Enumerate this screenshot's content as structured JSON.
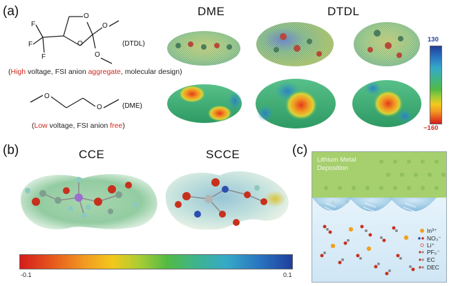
{
  "panels": {
    "a": {
      "label": "(a)",
      "dtdl": {
        "atoms": {
          "F1": "F",
          "F2": "F",
          "F3": "F",
          "O1": "O",
          "O2": "O",
          "O3": "O",
          "O4": "O"
        },
        "tag": "(DTDL)",
        "caption": {
          "open": "(",
          "high": "High",
          "mid": " voltage, FSI anion ",
          "agg": "aggregate",
          "end": ", molecular design)"
        }
      },
      "dme": {
        "atoms": {
          "O1": "O",
          "O2": "O"
        },
        "tag": "(DME)",
        "caption": {
          "open": "(",
          "low": "Low",
          "mid": " voltage, FSI anion ",
          "free": "free",
          "end": ")"
        }
      },
      "titles": {
        "dme": "DME",
        "dtdl": "DTDL"
      },
      "scale": {
        "max": "130",
        "min": "−160"
      }
    },
    "b": {
      "label": "(b)",
      "titles": {
        "cce": "CCE",
        "scce": "SCCE"
      },
      "scale": {
        "min": "-0.1",
        "max": "0.1"
      }
    },
    "c": {
      "label": "(c)",
      "title_line1": "Lithium Metal",
      "title_line2": "Deposition",
      "legend": [
        "In³⁺",
        "NO₃⁻",
        "Li⁺",
        "PF₆⁻",
        "EC",
        "DEC"
      ]
    }
  },
  "colors": {
    "red": "#d0281e",
    "scale_top": "#1f3f9c",
    "green_layer": "#a6cf6e",
    "electrolyte_blue": "#dff0fa",
    "gold": "#f2a01d"
  }
}
